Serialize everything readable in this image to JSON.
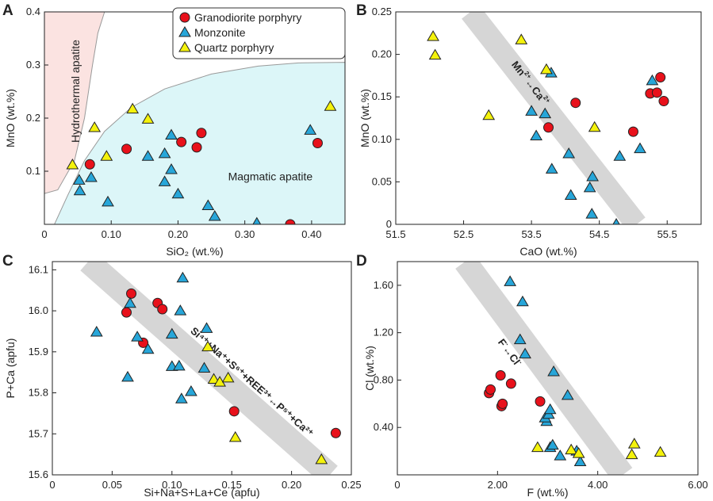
{
  "figure": "Apatite geochemistry scatter plots",
  "legend": {
    "items": [
      {
        "label": "Granodiorite porphyry",
        "color": "#e8111b",
        "shape": "circle"
      },
      {
        "label": "Monzonite",
        "color": "#27a6d9",
        "shape": "triangle"
      },
      {
        "label": "Quartz porphyry",
        "color": "#f4f20c",
        "shape": "triangle"
      }
    ]
  },
  "colors": {
    "granodiorite": "#e8111b",
    "monzonite": "#27a6d9",
    "quartz": "#f4f20c",
    "hydrothermal_field": "#fbe3e1",
    "magmatic_field": "#dcf6f8",
    "band": "#d6d6d6"
  },
  "chart_data": [
    {
      "id": "A",
      "type": "scatter",
      "xlabel": "SiO₂ (wt.%)",
      "ylabel": "MnO (wt.%)",
      "xlim": [
        0,
        0.45
      ],
      "ylim": [
        0,
        0.4
      ],
      "xticks": [
        {
          "v": 0,
          "t": "0"
        },
        {
          "v": 0.1,
          "t": "0.10"
        },
        {
          "v": 0.2,
          "t": "0.20"
        },
        {
          "v": 0.3,
          "t": "0.30"
        },
        {
          "v": 0.4,
          "t": "0.40"
        }
      ],
      "yticks": [
        {
          "v": 0.1,
          "t": "0.1"
        },
        {
          "v": 0.2,
          "t": "0.2"
        },
        {
          "v": 0.3,
          "t": "0.3"
        },
        {
          "v": 0.4,
          "t": "0.4"
        }
      ],
      "fields": [
        {
          "name": "hydrothermal",
          "label": "Hydrothermal apatite",
          "points": [
            [
              0,
              0.058
            ],
            [
              0.02,
              0.065
            ],
            [
              0.045,
              0.12
            ],
            [
              0.06,
              0.2
            ],
            [
              0.072,
              0.3
            ],
            [
              0.08,
              0.36
            ],
            [
              0.09,
              0.4
            ],
            [
              0,
              0.4
            ]
          ]
        },
        {
          "name": "magmatic",
          "label": "Magmatic apatite",
          "points": [
            [
              0.015,
              0
            ],
            [
              0.035,
              0.055
            ],
            [
              0.06,
              0.12
            ],
            [
              0.09,
              0.175
            ],
            [
              0.13,
              0.22
            ],
            [
              0.18,
              0.255
            ],
            [
              0.25,
              0.283
            ],
            [
              0.32,
              0.298
            ],
            [
              0.38,
              0.304
            ],
            [
              0.45,
              0.305
            ],
            [
              0.45,
              0
            ]
          ]
        }
      ],
      "series": [
        {
          "name": "Granodiorite porphyry",
          "marker": "circle",
          "color": "#e8111b",
          "points": [
            [
              0.068,
              0.113
            ],
            [
              0.123,
              0.142
            ],
            [
              0.205,
              0.155
            ],
            [
              0.228,
              0.145
            ],
            [
              0.235,
              0.172
            ],
            [
              0.368,
              0.0
            ],
            [
              0.409,
              0.153
            ]
          ]
        },
        {
          "name": "Monzonite",
          "marker": "triangle",
          "color": "#27a6d9",
          "points": [
            [
              0.052,
              0.083
            ],
            [
              0.053,
              0.063
            ],
            [
              0.07,
              0.088
            ],
            [
              0.095,
              0.042
            ],
            [
              0.155,
              0.128
            ],
            [
              0.18,
              0.133
            ],
            [
              0.18,
              0.08
            ],
            [
              0.19,
              0.168
            ],
            [
              0.19,
              0.103
            ],
            [
              0.2,
              0.057
            ],
            [
              0.245,
              0.035
            ],
            [
              0.255,
              0.015
            ],
            [
              0.318,
              0.002
            ],
            [
              0.398,
              0.177
            ]
          ]
        },
        {
          "name": "Quartz porphyry",
          "marker": "triangle",
          "color": "#f4f20c",
          "points": [
            [
              0.042,
              0.112
            ],
            [
              0.075,
              0.182
            ],
            [
              0.093,
              0.128
            ],
            [
              0.132,
              0.217
            ],
            [
              0.155,
              0.198
            ],
            [
              0.428,
              0.222
            ]
          ]
        }
      ],
      "annotations": [
        {
          "text": "Magmatic apatite",
          "x": 0.275,
          "y": 0.083
        }
      ]
    },
    {
      "id": "B",
      "type": "scatter",
      "xlabel": "CaO (wt.%)",
      "ylabel": "MnO (wt.%)",
      "xlim": [
        51.5,
        56.0
      ],
      "ylim": [
        0,
        0.25
      ],
      "xticks": [
        {
          "v": 51.5,
          "t": "51.5"
        },
        {
          "v": 52.5,
          "t": "52.5"
        },
        {
          "v": 53.5,
          "t": "53.5"
        },
        {
          "v": 54.5,
          "t": "54.5"
        },
        {
          "v": 55.5,
          "t": "55.5"
        }
      ],
      "yticks": [
        {
          "v": 0,
          "t": "0"
        },
        {
          "v": 0.05,
          "t": "0.05"
        },
        {
          "v": 0.1,
          "t": "0.10"
        },
        {
          "v": 0.15,
          "t": "0.15"
        },
        {
          "v": 0.2,
          "t": "0.20"
        },
        {
          "v": 0.25,
          "t": "0.25"
        }
      ],
      "band": {
        "start": [
          52.6,
          0.25
        ],
        "end": [
          55.05,
          0.0
        ],
        "width": 28
      },
      "band_label": {
        "main": "Mn",
        "sup1": "2+",
        "mid": "↔Ca",
        "sup2": "2+",
        "x": 53.2,
        "y": 0.188
      },
      "series": [
        {
          "name": "Granodiorite porphyry",
          "marker": "circle",
          "color": "#e8111b",
          "points": [
            [
              53.75,
              0.114
            ],
            [
              54.15,
              0.143
            ],
            [
              55.0,
              0.109
            ],
            [
              55.25,
              0.154
            ],
            [
              55.35,
              0.155
            ],
            [
              55.4,
              0.173
            ],
            [
              55.45,
              0.145
            ]
          ]
        },
        {
          "name": "Monzonite",
          "marker": "triangle",
          "color": "#27a6d9",
          "points": [
            [
              53.5,
              0.133
            ],
            [
              53.57,
              0.104
            ],
            [
              53.7,
              0.13
            ],
            [
              53.79,
              0.178
            ],
            [
              53.8,
              0.065
            ],
            [
              54.05,
              0.083
            ],
            [
              54.08,
              0.034
            ],
            [
              54.36,
              0.043
            ],
            [
              54.4,
              0.056
            ],
            [
              54.39,
              0.012
            ],
            [
              54.75,
              0.0
            ],
            [
              54.8,
              0.08
            ],
            [
              55.1,
              0.089
            ],
            [
              55.28,
              0.169
            ]
          ]
        },
        {
          "name": "Quartz porphyry",
          "marker": "triangle",
          "color": "#f4f20c",
          "points": [
            [
              52.05,
              0.221
            ],
            [
              52.08,
              0.199
            ],
            [
              52.87,
              0.128
            ],
            [
              53.35,
              0.217
            ],
            [
              53.72,
              0.182
            ],
            [
              54.43,
              0.114
            ]
          ]
        }
      ]
    },
    {
      "id": "C",
      "type": "scatter",
      "xlabel": "Si+Na+S+La+Ce (apfu)",
      "ylabel": "P+Ca (apfu)",
      "xlim": [
        0,
        0.25
      ],
      "ylim": [
        15.6,
        16.12
      ],
      "xticks": [
        {
          "v": 0,
          "t": "0"
        },
        {
          "v": 0.05,
          "t": "0.05"
        },
        {
          "v": 0.1,
          "t": "0.10"
        },
        {
          "v": 0.15,
          "t": "0.15"
        },
        {
          "v": 0.2,
          "t": "0.20"
        },
        {
          "v": 0.25,
          "t": "0.25"
        }
      ],
      "yticks": [
        {
          "v": 15.6,
          "t": "15.6"
        },
        {
          "v": 15.7,
          "t": "15.7"
        },
        {
          "v": 15.8,
          "t": "15.8"
        },
        {
          "v": 15.9,
          "t": "15.9"
        },
        {
          "v": 16.0,
          "t": "16.0"
        },
        {
          "v": 16.1,
          "t": "16.1"
        }
      ],
      "band": {
        "start": [
          0.03,
          16.12
        ],
        "end": [
          0.232,
          15.6
        ],
        "width": 30
      },
      "band_label": {
        "text": "Si⁴⁺+Na⁺+S⁶⁺+REE³⁺↔P⁵⁺+Ca²⁺",
        "x": 0.165,
        "y": 15.82
      },
      "series": [
        {
          "name": "Granodiorite porphyry",
          "marker": "circle",
          "color": "#e8111b",
          "points": [
            [
              0.062,
              15.996
            ],
            [
              0.066,
              16.042
            ],
            [
              0.076,
              15.922
            ],
            [
              0.088,
              16.019
            ],
            [
              0.092,
              16.004
            ],
            [
              0.152,
              15.755
            ],
            [
              0.237,
              15.702
            ]
          ]
        },
        {
          "name": "Monzonite",
          "marker": "triangle",
          "color": "#27a6d9",
          "points": [
            [
              0.037,
              15.948
            ],
            [
              0.063,
              15.838
            ],
            [
              0.065,
              16.018
            ],
            [
              0.071,
              15.936
            ],
            [
              0.08,
              15.906
            ],
            [
              0.1,
              15.943
            ],
            [
              0.1,
              15.864
            ],
            [
              0.106,
              15.865
            ],
            [
              0.107,
              16.0
            ],
            [
              0.108,
              15.785
            ],
            [
              0.109,
              16.08
            ],
            [
              0.116,
              15.803
            ],
            [
              0.127,
              15.86
            ],
            [
              0.129,
              15.957
            ]
          ]
        },
        {
          "name": "Quartz porphyry",
          "marker": "triangle",
          "color": "#f4f20c",
          "points": [
            [
              0.13,
              15.912
            ],
            [
              0.135,
              15.833
            ],
            [
              0.14,
              15.826
            ],
            [
              0.147,
              15.836
            ],
            [
              0.153,
              15.691
            ],
            [
              0.225,
              15.637
            ]
          ]
        }
      ]
    },
    {
      "id": "D",
      "type": "scatter",
      "xlabel": "F (wt.%)",
      "ylabel": "Cl (wt.%)",
      "xlim": [
        0,
        6.0
      ],
      "ylim": [
        0,
        1.8
      ],
      "xticks": [
        {
          "v": 0,
          "t": "0"
        },
        {
          "v": 2.0,
          "t": "2.00"
        },
        {
          "v": 4.0,
          "t": "4.00"
        },
        {
          "v": 6.0,
          "t": "6.00"
        }
      ],
      "yticks": [
        {
          "v": 0.4,
          "t": "0.40"
        },
        {
          "v": 0.8,
          "t": "0.80"
        },
        {
          "v": 1.2,
          "t": "1.20"
        },
        {
          "v": 1.6,
          "t": "1.60"
        }
      ],
      "band": {
        "start": [
          1.35,
          1.8
        ],
        "end": [
          4.5,
          0.0
        ],
        "width": 30
      },
      "band_label": {
        "main": "F",
        "sup1": "-",
        "mid": "↔Cl",
        "sup2": "-",
        "x": 2.0,
        "y": 1.12
      },
      "series": [
        {
          "name": "Granodiorite porphyry",
          "marker": "circle",
          "color": "#e8111b",
          "points": [
            [
              1.83,
              0.69
            ],
            [
              1.86,
              0.72
            ],
            [
              2.06,
              0.84
            ],
            [
              2.08,
              0.58
            ],
            [
              2.1,
              0.6
            ],
            [
              2.27,
              0.77
            ],
            [
              2.85,
              0.62
            ]
          ]
        },
        {
          "name": "Monzonite",
          "marker": "triangle",
          "color": "#27a6d9",
          "points": [
            [
              2.25,
              1.63
            ],
            [
              2.5,
              1.46
            ],
            [
              2.45,
              1.14
            ],
            [
              2.55,
              1.02
            ],
            [
              2.98,
              0.45
            ],
            [
              2.95,
              0.48
            ],
            [
              3.02,
              0.51
            ],
            [
              3.05,
              0.55
            ],
            [
              3.12,
              0.87
            ],
            [
              3.05,
              0.23
            ],
            [
              3.1,
              0.25
            ],
            [
              3.25,
              0.16
            ],
            [
              3.4,
              0.67
            ],
            [
              3.58,
              0.2
            ],
            [
              3.65,
              0.11
            ]
          ]
        },
        {
          "name": "Quartz porphyry",
          "marker": "triangle",
          "color": "#f4f20c",
          "points": [
            [
              2.8,
              0.23
            ],
            [
              3.47,
              0.21
            ],
            [
              3.62,
              0.18
            ],
            [
              4.73,
              0.26
            ],
            [
              4.68,
              0.17
            ],
            [
              5.25,
              0.19
            ]
          ]
        }
      ]
    }
  ]
}
